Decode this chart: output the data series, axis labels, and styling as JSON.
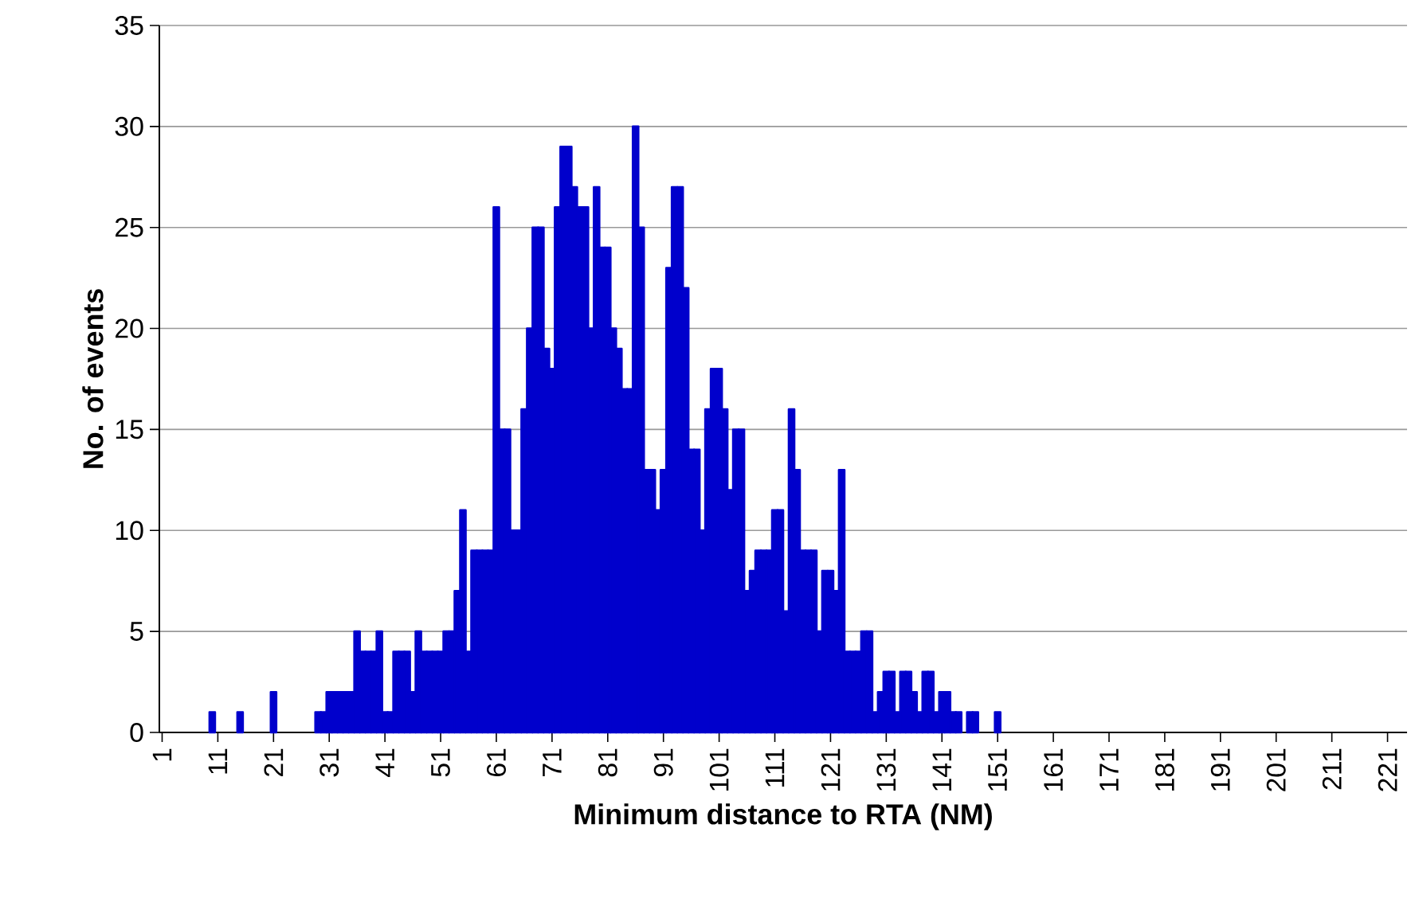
{
  "chart_data": {
    "type": "bar",
    "xlabel": "Minimum distance to RTA (NM)",
    "ylabel": "No. of events",
    "categories": [
      "1",
      null,
      null,
      null,
      null,
      null,
      null,
      null,
      null,
      null,
      "11",
      null,
      null,
      null,
      null,
      null,
      null,
      null,
      null,
      null,
      "21",
      null,
      null,
      null,
      null,
      null,
      null,
      null,
      null,
      null,
      "31",
      null,
      null,
      null,
      null,
      null,
      null,
      null,
      null,
      null,
      "41",
      null,
      null,
      null,
      null,
      null,
      null,
      null,
      null,
      null,
      "51",
      null,
      null,
      null,
      null,
      null,
      null,
      null,
      null,
      null,
      "61",
      null,
      null,
      null,
      null,
      null,
      null,
      null,
      null,
      null,
      "71",
      null,
      null,
      null,
      null,
      null,
      null,
      null,
      null,
      null,
      "81",
      null,
      null,
      null,
      null,
      null,
      null,
      null,
      null,
      null,
      "91",
      null,
      null,
      null,
      null,
      null,
      null,
      null,
      null,
      null,
      "101",
      null,
      null,
      null,
      null,
      null,
      null,
      null,
      null,
      null,
      "111",
      null,
      null,
      null,
      null,
      null,
      null,
      null,
      null,
      null,
      "121",
      null,
      null,
      null,
      null,
      null,
      null,
      null,
      null,
      null,
      "131",
      null,
      null,
      null,
      null,
      null,
      null,
      null,
      null,
      null,
      "141",
      null,
      null,
      null,
      null,
      null,
      null,
      null,
      null,
      null,
      "151",
      null,
      null,
      null,
      null,
      null,
      null,
      null,
      null,
      null,
      "161",
      null,
      null,
      null,
      null,
      null,
      null,
      null,
      null,
      null,
      "171",
      null,
      null,
      null,
      null,
      null,
      null,
      null,
      null,
      null,
      "181",
      null,
      null,
      null,
      null,
      null,
      null,
      null,
      null,
      null,
      "191",
      null,
      null,
      null,
      null,
      null,
      null,
      null,
      null,
      null,
      "201",
      null,
      null,
      null,
      null,
      null,
      null,
      null,
      null,
      null,
      "211",
      null,
      null,
      null,
      null,
      null,
      null,
      null,
      null,
      null,
      "221",
      null,
      null,
      null
    ],
    "values": [
      0,
      0,
      0,
      0,
      0,
      0,
      0,
      0,
      0,
      1,
      0,
      0,
      0,
      0,
      1,
      0,
      0,
      0,
      0,
      0,
      2,
      0,
      0,
      0,
      0,
      0,
      0,
      0,
      1,
      1,
      2,
      2,
      2,
      2,
      2,
      5,
      4,
      4,
      4,
      5,
      1,
      1,
      4,
      4,
      4,
      2,
      5,
      4,
      4,
      4,
      4,
      5,
      5,
      7,
      11,
      4,
      9,
      9,
      9,
      9,
      26,
      15,
      15,
      10,
      10,
      16,
      20,
      25,
      25,
      19,
      18,
      26,
      29,
      29,
      27,
      26,
      26,
      20,
      27,
      24,
      24,
      20,
      19,
      17,
      17,
      30,
      25,
      13,
      13,
      11,
      13,
      23,
      27,
      27,
      22,
      14,
      14,
      10,
      16,
      18,
      18,
      16,
      12,
      15,
      15,
      7,
      8,
      9,
      9,
      9,
      11,
      11,
      6,
      16,
      13,
      9,
      9,
      9,
      5,
      8,
      8,
      7,
      13,
      4,
      4,
      4,
      5,
      5,
      1,
      2,
      3,
      3,
      1,
      3,
      3,
      2,
      1,
      3,
      3,
      1,
      2,
      2,
      1,
      1,
      0,
      1,
      1,
      0,
      0,
      0,
      1,
      0,
      0,
      0,
      0,
      0,
      0,
      0,
      0,
      0,
      0,
      0,
      0,
      0,
      0,
      0,
      0,
      0,
      0,
      0,
      0,
      0,
      0,
      0,
      0,
      0,
      0,
      0,
      0,
      0,
      0,
      0,
      0,
      0,
      0,
      0,
      0,
      0,
      0,
      0,
      0,
      0,
      0,
      0,
      0,
      0,
      0,
      0,
      0,
      0,
      0,
      0,
      0,
      0,
      0,
      0,
      0,
      0,
      0,
      0,
      0,
      0,
      0,
      0,
      0,
      0,
      0,
      0,
      0,
      0,
      0,
      0,
      0,
      0
    ],
    "color": "#0000cc",
    "ylim": [
      0,
      35
    ],
    "yticks": [
      0,
      5,
      10,
      15,
      20,
      25,
      30,
      35
    ],
    "grid": "y"
  }
}
